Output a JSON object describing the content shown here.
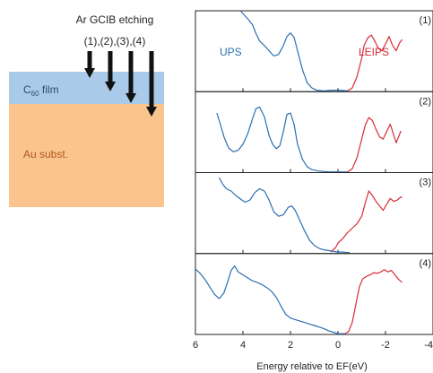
{
  "schematic": {
    "title": "Ar GCIB etching",
    "steps_label": "(1),(2),(3),(4)",
    "film_label_main": "C",
    "film_label_sub": "60",
    "film_label_rest": " film",
    "substrate_label": "Au subst.",
    "film_color": "#a9cbe9",
    "substrate_color": "#f9c48e",
    "substrate_text_color": "#b5561f",
    "arrow_color": "#111111"
  },
  "chart_data": {
    "type": "line",
    "xlabel": "Energy relative to EF(eV)",
    "xlim": [
      6,
      -4
    ],
    "x_ticks": [
      6,
      4,
      2,
      0,
      -2,
      -4
    ],
    "x_tick_labels": [
      "6",
      "4",
      "2",
      "0",
      "-2",
      "-4"
    ],
    "panel_labels": [
      "(1)",
      "(2)",
      "(3)",
      "(4)"
    ],
    "series_labels": {
      "ups": "UPS",
      "leips": "LEIPS"
    },
    "colors": {
      "ups": "#2b6fb0",
      "leips": "#d82a37"
    },
    "panels": [
      {
        "label": "(1)",
        "ups": [
          [
            4.2,
            1.12
          ],
          [
            4.0,
            1.05
          ],
          [
            3.8,
            0.98
          ],
          [
            3.6,
            0.9
          ],
          [
            3.45,
            0.78
          ],
          [
            3.3,
            0.68
          ],
          [
            3.1,
            0.62
          ],
          [
            2.9,
            0.55
          ],
          [
            2.7,
            0.48
          ],
          [
            2.5,
            0.5
          ],
          [
            2.3,
            0.62
          ],
          [
            2.15,
            0.74
          ],
          [
            2.0,
            0.79
          ],
          [
            1.85,
            0.73
          ],
          [
            1.7,
            0.55
          ],
          [
            1.5,
            0.3
          ],
          [
            1.3,
            0.12
          ],
          [
            1.1,
            0.05
          ],
          [
            0.9,
            0.02
          ],
          [
            0.6,
            0.01
          ],
          [
            0.3,
            0.02
          ],
          [
            0.1,
            0.02
          ],
          [
            -0.1,
            0.02
          ],
          [
            -0.4,
            0.01
          ]
        ],
        "leips": [
          [
            -0.4,
            0.01
          ],
          [
            -0.6,
            0.05
          ],
          [
            -0.8,
            0.2
          ],
          [
            -1.0,
            0.45
          ],
          [
            -1.1,
            0.62
          ],
          [
            -1.25,
            0.72
          ],
          [
            -1.4,
            0.76
          ],
          [
            -1.55,
            0.68
          ],
          [
            -1.7,
            0.58
          ],
          [
            -1.85,
            0.55
          ],
          [
            -2.0,
            0.64
          ],
          [
            -2.15,
            0.74
          ],
          [
            -2.3,
            0.62
          ],
          [
            -2.45,
            0.55
          ],
          [
            -2.6,
            0.66
          ],
          [
            -2.7,
            0.7
          ]
        ]
      },
      {
        "label": "(2)",
        "ups": [
          [
            5.1,
            0.8
          ],
          [
            4.95,
            0.65
          ],
          [
            4.8,
            0.48
          ],
          [
            4.6,
            0.33
          ],
          [
            4.4,
            0.28
          ],
          [
            4.2,
            0.3
          ],
          [
            4.0,
            0.38
          ],
          [
            3.8,
            0.52
          ],
          [
            3.6,
            0.72
          ],
          [
            3.45,
            0.86
          ],
          [
            3.3,
            0.88
          ],
          [
            3.1,
            0.75
          ],
          [
            2.9,
            0.5
          ],
          [
            2.75,
            0.38
          ],
          [
            2.6,
            0.32
          ],
          [
            2.45,
            0.36
          ],
          [
            2.3,
            0.55
          ],
          [
            2.15,
            0.78
          ],
          [
            2.0,
            0.8
          ],
          [
            1.85,
            0.65
          ],
          [
            1.7,
            0.38
          ],
          [
            1.5,
            0.18
          ],
          [
            1.3,
            0.08
          ],
          [
            1.1,
            0.04
          ],
          [
            0.8,
            0.02
          ],
          [
            0.4,
            0.01
          ],
          [
            0.0,
            0.01
          ],
          [
            -0.4,
            0.01
          ]
        ],
        "leips": [
          [
            -0.4,
            0.01
          ],
          [
            -0.6,
            0.05
          ],
          [
            -0.8,
            0.2
          ],
          [
            -1.0,
            0.45
          ],
          [
            -1.15,
            0.64
          ],
          [
            -1.3,
            0.74
          ],
          [
            -1.45,
            0.7
          ],
          [
            -1.6,
            0.58
          ],
          [
            -1.75,
            0.48
          ],
          [
            -1.9,
            0.45
          ],
          [
            -2.05,
            0.55
          ],
          [
            -2.2,
            0.65
          ],
          [
            -2.3,
            0.55
          ],
          [
            -2.45,
            0.4
          ],
          [
            -2.55,
            0.48
          ],
          [
            -2.65,
            0.56
          ]
        ]
      },
      {
        "label": "(3)",
        "ups": [
          [
            5.0,
            1.02
          ],
          [
            4.85,
            0.93
          ],
          [
            4.7,
            0.87
          ],
          [
            4.5,
            0.84
          ],
          [
            4.3,
            0.78
          ],
          [
            4.1,
            0.73
          ],
          [
            3.9,
            0.69
          ],
          [
            3.7,
            0.72
          ],
          [
            3.5,
            0.82
          ],
          [
            3.3,
            0.87
          ],
          [
            3.1,
            0.84
          ],
          [
            2.9,
            0.72
          ],
          [
            2.7,
            0.56
          ],
          [
            2.5,
            0.5
          ],
          [
            2.3,
            0.52
          ],
          [
            2.1,
            0.62
          ],
          [
            1.95,
            0.64
          ],
          [
            1.8,
            0.58
          ],
          [
            1.6,
            0.44
          ],
          [
            1.4,
            0.3
          ],
          [
            1.2,
            0.18
          ],
          [
            1.0,
            0.11
          ],
          [
            0.8,
            0.07
          ],
          [
            0.6,
            0.05
          ],
          [
            0.4,
            0.04
          ],
          [
            0.2,
            0.03
          ],
          [
            0.0,
            0.02
          ],
          [
            -0.2,
            0.02
          ],
          [
            -0.5,
            0.01
          ]
        ],
        "leips": [
          [
            0.3,
            0.02
          ],
          [
            0.2,
            0.05
          ],
          [
            0.1,
            0.08
          ],
          [
            0.0,
            0.14
          ],
          [
            -0.2,
            0.2
          ],
          [
            -0.4,
            0.28
          ],
          [
            -0.6,
            0.34
          ],
          [
            -0.8,
            0.4
          ],
          [
            -1.0,
            0.5
          ],
          [
            -1.15,
            0.68
          ],
          [
            -1.3,
            0.84
          ],
          [
            -1.45,
            0.78
          ],
          [
            -1.6,
            0.7
          ],
          [
            -1.75,
            0.64
          ],
          [
            -1.9,
            0.58
          ],
          [
            -2.05,
            0.66
          ],
          [
            -2.2,
            0.74
          ],
          [
            -2.35,
            0.7
          ],
          [
            -2.5,
            0.72
          ],
          [
            -2.65,
            0.76
          ],
          [
            -2.7,
            0.75
          ]
        ]
      },
      {
        "label": "(4)",
        "ups": [
          [
            6.0,
            0.88
          ],
          [
            5.8,
            0.82
          ],
          [
            5.6,
            0.74
          ],
          [
            5.4,
            0.64
          ],
          [
            5.2,
            0.54
          ],
          [
            5.0,
            0.48
          ],
          [
            4.8,
            0.56
          ],
          [
            4.65,
            0.7
          ],
          [
            4.5,
            0.86
          ],
          [
            4.35,
            0.92
          ],
          [
            4.2,
            0.84
          ],
          [
            4.0,
            0.8
          ],
          [
            3.8,
            0.76
          ],
          [
            3.6,
            0.72
          ],
          [
            3.4,
            0.7
          ],
          [
            3.2,
            0.67
          ],
          [
            3.0,
            0.63
          ],
          [
            2.8,
            0.58
          ],
          [
            2.6,
            0.5
          ],
          [
            2.4,
            0.38
          ],
          [
            2.2,
            0.27
          ],
          [
            2.0,
            0.22
          ],
          [
            1.8,
            0.2
          ],
          [
            1.6,
            0.18
          ],
          [
            1.4,
            0.16
          ],
          [
            1.2,
            0.14
          ],
          [
            1.0,
            0.12
          ],
          [
            0.8,
            0.1
          ],
          [
            0.6,
            0.08
          ],
          [
            0.4,
            0.05
          ],
          [
            0.2,
            0.03
          ],
          [
            0.0,
            0.01
          ],
          [
            -0.3,
            0.01
          ]
        ],
        "leips": [
          [
            -0.3,
            0.01
          ],
          [
            -0.45,
            0.04
          ],
          [
            -0.6,
            0.16
          ],
          [
            -0.75,
            0.4
          ],
          [
            -0.9,
            0.64
          ],
          [
            -1.05,
            0.75
          ],
          [
            -1.2,
            0.78
          ],
          [
            -1.35,
            0.8
          ],
          [
            -1.5,
            0.83
          ],
          [
            -1.65,
            0.82
          ],
          [
            -1.8,
            0.84
          ],
          [
            -1.95,
            0.87
          ],
          [
            -2.1,
            0.84
          ],
          [
            -2.25,
            0.86
          ],
          [
            -2.4,
            0.8
          ],
          [
            -2.55,
            0.74
          ],
          [
            -2.7,
            0.7
          ]
        ]
      }
    ]
  }
}
